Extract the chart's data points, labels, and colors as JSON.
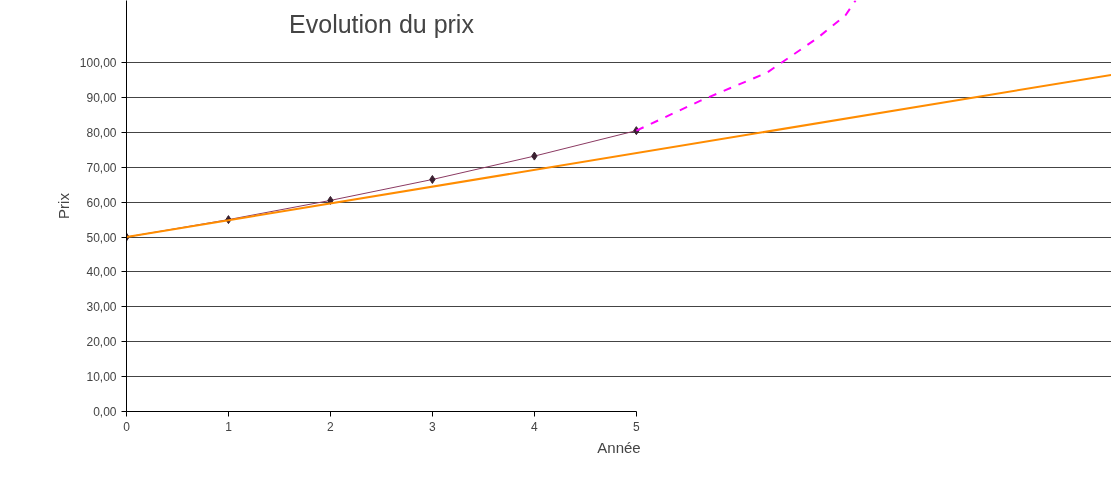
{
  "chart_data": {
    "type": "line",
    "title": "Evolution du prix",
    "xlabel": "Année",
    "ylabel": "Prix",
    "xlim": [
      0,
      9.66
    ],
    "ylim": [
      0,
      117.8
    ],
    "xticks": [
      0,
      1,
      2,
      3,
      4,
      5
    ],
    "yticks": [
      {
        "value": 0,
        "label": "0,00"
      },
      {
        "value": 10,
        "label": "10,00"
      },
      {
        "value": 20,
        "label": "20,00"
      },
      {
        "value": 30,
        "label": "30,00"
      },
      {
        "value": 40,
        "label": "40,00"
      },
      {
        "value": 50,
        "label": "50,00"
      },
      {
        "value": 60,
        "label": "60,00"
      },
      {
        "value": 70,
        "label": "70,00"
      },
      {
        "value": 80,
        "label": "80,00"
      },
      {
        "value": 90,
        "label": "90,00"
      },
      {
        "value": 100,
        "label": "100,00"
      }
    ],
    "grid": "y",
    "series": [
      {
        "color": "#8b3a62",
        "x": [
          0,
          1,
          2,
          3,
          4,
          5
        ],
        "values": [
          50,
          55,
          60.5,
          66.5,
          73.2,
          80.5
        ],
        "marker": "diamond",
        "line_style": "solid"
      },
      {
        "color": "#ff00ff",
        "x": [
          5,
          5.63,
          6.28,
          6.77,
          7.05,
          7.15
        ],
        "values": [
          80.5,
          89.1,
          97.1,
          106.9,
          113.5,
          117.8
        ],
        "marker": "none",
        "line_style": "dashed"
      },
      {
        "color": "#ff8c00",
        "x": [
          0,
          9.66
        ],
        "values": [
          50,
          96.5
        ],
        "marker": "none",
        "line_style": "solid"
      }
    ]
  }
}
